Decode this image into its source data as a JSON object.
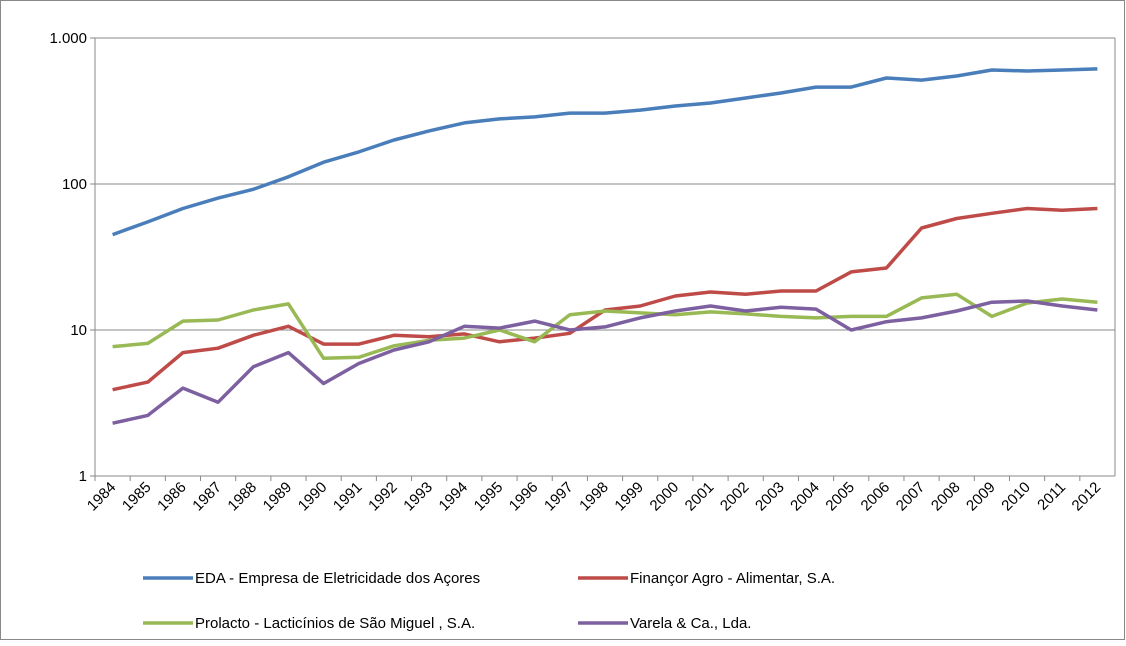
{
  "chart_data": {
    "type": "line",
    "log_y": true,
    "grid": true,
    "legend": "bottom",
    "categories": [
      "1984",
      "1985",
      "1986",
      "1987",
      "1988",
      "1989",
      "1990",
      "1991",
      "1992",
      "1993",
      "1994",
      "1995",
      "1996",
      "1997",
      "1998",
      "1999",
      "2000",
      "2001",
      "2002",
      "2003",
      "2004",
      "2005",
      "2006",
      "2007",
      "2008",
      "2009",
      "2010",
      "2011",
      "2012"
    ],
    "ylim": [
      1,
      1000
    ],
    "yticks": [
      1,
      10,
      100,
      {
        "value": 1000,
        "label": "1.000"
      }
    ],
    "series": [
      {
        "name": "EDA - Empresa de Eletricidade dos Açores",
        "color": "#4a7ebb",
        "values": [
          45,
          55,
          68,
          80,
          92,
          112,
          141,
          166,
          200,
          231,
          262,
          279,
          288,
          306,
          306,
          321,
          342,
          359,
          388,
          420,
          461,
          461,
          532,
          515,
          549,
          604,
          594,
          604,
          614
        ]
      },
      {
        "name": "Finançor Agro - Alimentar, S.A.",
        "color": "#be4b48",
        "values": [
          3.9,
          4.4,
          7.0,
          7.5,
          9.2,
          10.6,
          8.0,
          8.0,
          9.2,
          9.0,
          9.4,
          8.3,
          8.8,
          9.5,
          13.7,
          14.6,
          17.1,
          18.2,
          17.6,
          18.5,
          18.5,
          25,
          26.6,
          50,
          58,
          63,
          68,
          66,
          68
        ]
      },
      {
        "name": "Prolacto - Lacticínios de São Miguel , S.A.",
        "color": "#98b954",
        "values": [
          7.7,
          8.1,
          11.5,
          11.7,
          13.7,
          15.1,
          6.4,
          6.5,
          7.8,
          8.5,
          8.8,
          10,
          8.3,
          12.7,
          13.5,
          13.1,
          12.7,
          13.3,
          12.9,
          12.4,
          12.1,
          12.4,
          12.4,
          16.6,
          17.6,
          12.4,
          15.3,
          16.3,
          15.5
        ]
      },
      {
        "name": "Varela & Ca., Lda.",
        "color": "#7d60a0",
        "values": [
          2.3,
          2.6,
          4.0,
          3.2,
          5.6,
          7.0,
          4.3,
          5.9,
          7.3,
          8.3,
          10.6,
          10.3,
          11.5,
          10,
          10.5,
          12.1,
          13.5,
          14.6,
          13.5,
          14.3,
          13.9,
          10,
          11.4,
          12.1,
          13.5,
          15.5,
          15.8,
          14.6,
          13.7
        ]
      }
    ]
  }
}
